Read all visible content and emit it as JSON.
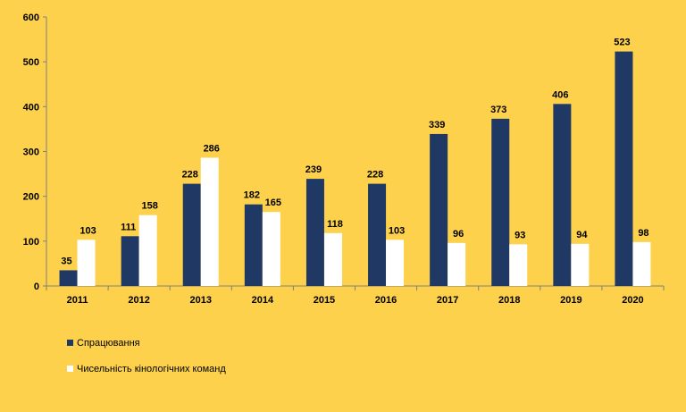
{
  "chart_data": {
    "type": "bar",
    "title": "",
    "xlabel": "",
    "ylabel": "",
    "categories": [
      "2011",
      "2012",
      "2013",
      "2014",
      "2015",
      "2016",
      "2017",
      "2018",
      "2019",
      "2020"
    ],
    "series": [
      {
        "name": "Спрацювання",
        "color": "#1f3864",
        "values": [
          35,
          111,
          228,
          182,
          239,
          228,
          339,
          373,
          406,
          523
        ]
      },
      {
        "name": "Чисельність кінологічних команд",
        "color": "#ffffff",
        "values": [
          103,
          158,
          286,
          165,
          118,
          103,
          96,
          93,
          94,
          98
        ]
      }
    ],
    "ylim": [
      0,
      600
    ],
    "yticks": [
      0,
      100,
      200,
      300,
      400,
      500,
      600
    ],
    "grid": false,
    "legend_position": "bottom-left",
    "data_labels": true
  }
}
